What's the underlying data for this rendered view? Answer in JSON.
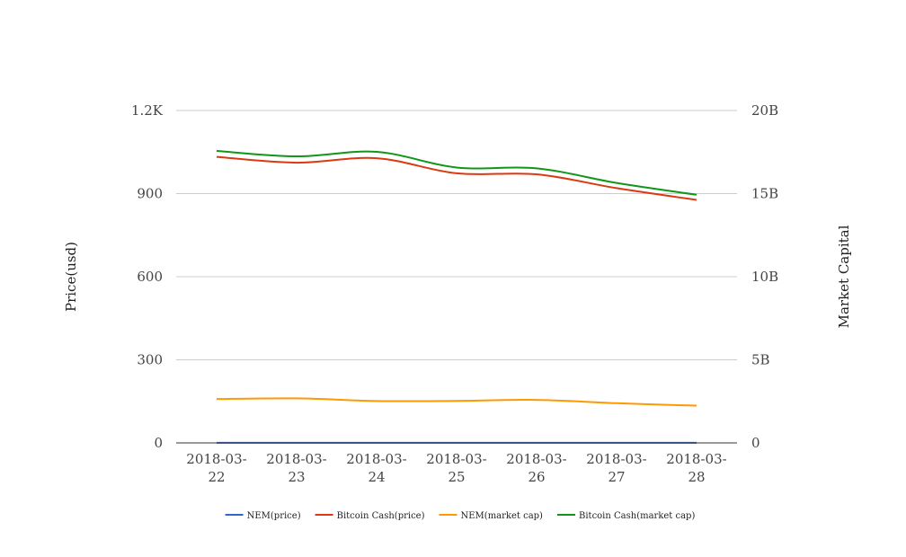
{
  "chart_data": {
    "type": "line",
    "categories": [
      "2018-03-22",
      "2018-03-23",
      "2018-03-24",
      "2018-03-25",
      "2018-03-26",
      "2018-03-27",
      "2018-03-28"
    ],
    "category_lines": [
      [
        "2018-03-",
        "22"
      ],
      [
        "2018-03-",
        "23"
      ],
      [
        "2018-03-",
        "24"
      ],
      [
        "2018-03-",
        "25"
      ],
      [
        "2018-03-",
        "26"
      ],
      [
        "2018-03-",
        "27"
      ],
      [
        "2018-03-",
        "28"
      ]
    ],
    "y_left": {
      "label": "Price(usd)",
      "ylim": [
        0,
        1200
      ],
      "ticks": [
        0,
        300,
        600,
        900,
        1200
      ],
      "tick_labels": [
        "0",
        "300",
        "600",
        "900",
        "1.2K"
      ]
    },
    "y_right": {
      "label": "Market Capital",
      "ylim": [
        0,
        20000000000
      ],
      "ticks": [
        0,
        5000000000,
        10000000000,
        15000000000,
        20000000000
      ],
      "tick_labels": [
        "0",
        "5B",
        "10B",
        "15B",
        "20B"
      ]
    },
    "series": [
      {
        "name": "NEM(price)",
        "axis": "left",
        "color": "#3366cc",
        "values": [
          0.3,
          0.3,
          0.3,
          0.3,
          0.3,
          0.3,
          0.3
        ]
      },
      {
        "name": "Bitcoin Cash(price)",
        "axis": "right",
        "color": "#dc3912",
        "values": [
          17210000000,
          16860000000,
          17130000000,
          16220000000,
          16160000000,
          15330000000,
          14620000000
        ]
      },
      {
        "name": "NEM(market cap)",
        "axis": "right",
        "color": "#ff9900",
        "values": [
          2640000000,
          2680000000,
          2520000000,
          2530000000,
          2590000000,
          2390000000,
          2240000000
        ]
      },
      {
        "name": "Bitcoin Cash(market cap)",
        "axis": "right",
        "color": "#109618",
        "values": [
          17570000000,
          17240000000,
          17510000000,
          16570000000,
          16520000000,
          15640000000,
          14930000000
        ]
      }
    ],
    "grid": true,
    "legend_position": "bottom"
  }
}
